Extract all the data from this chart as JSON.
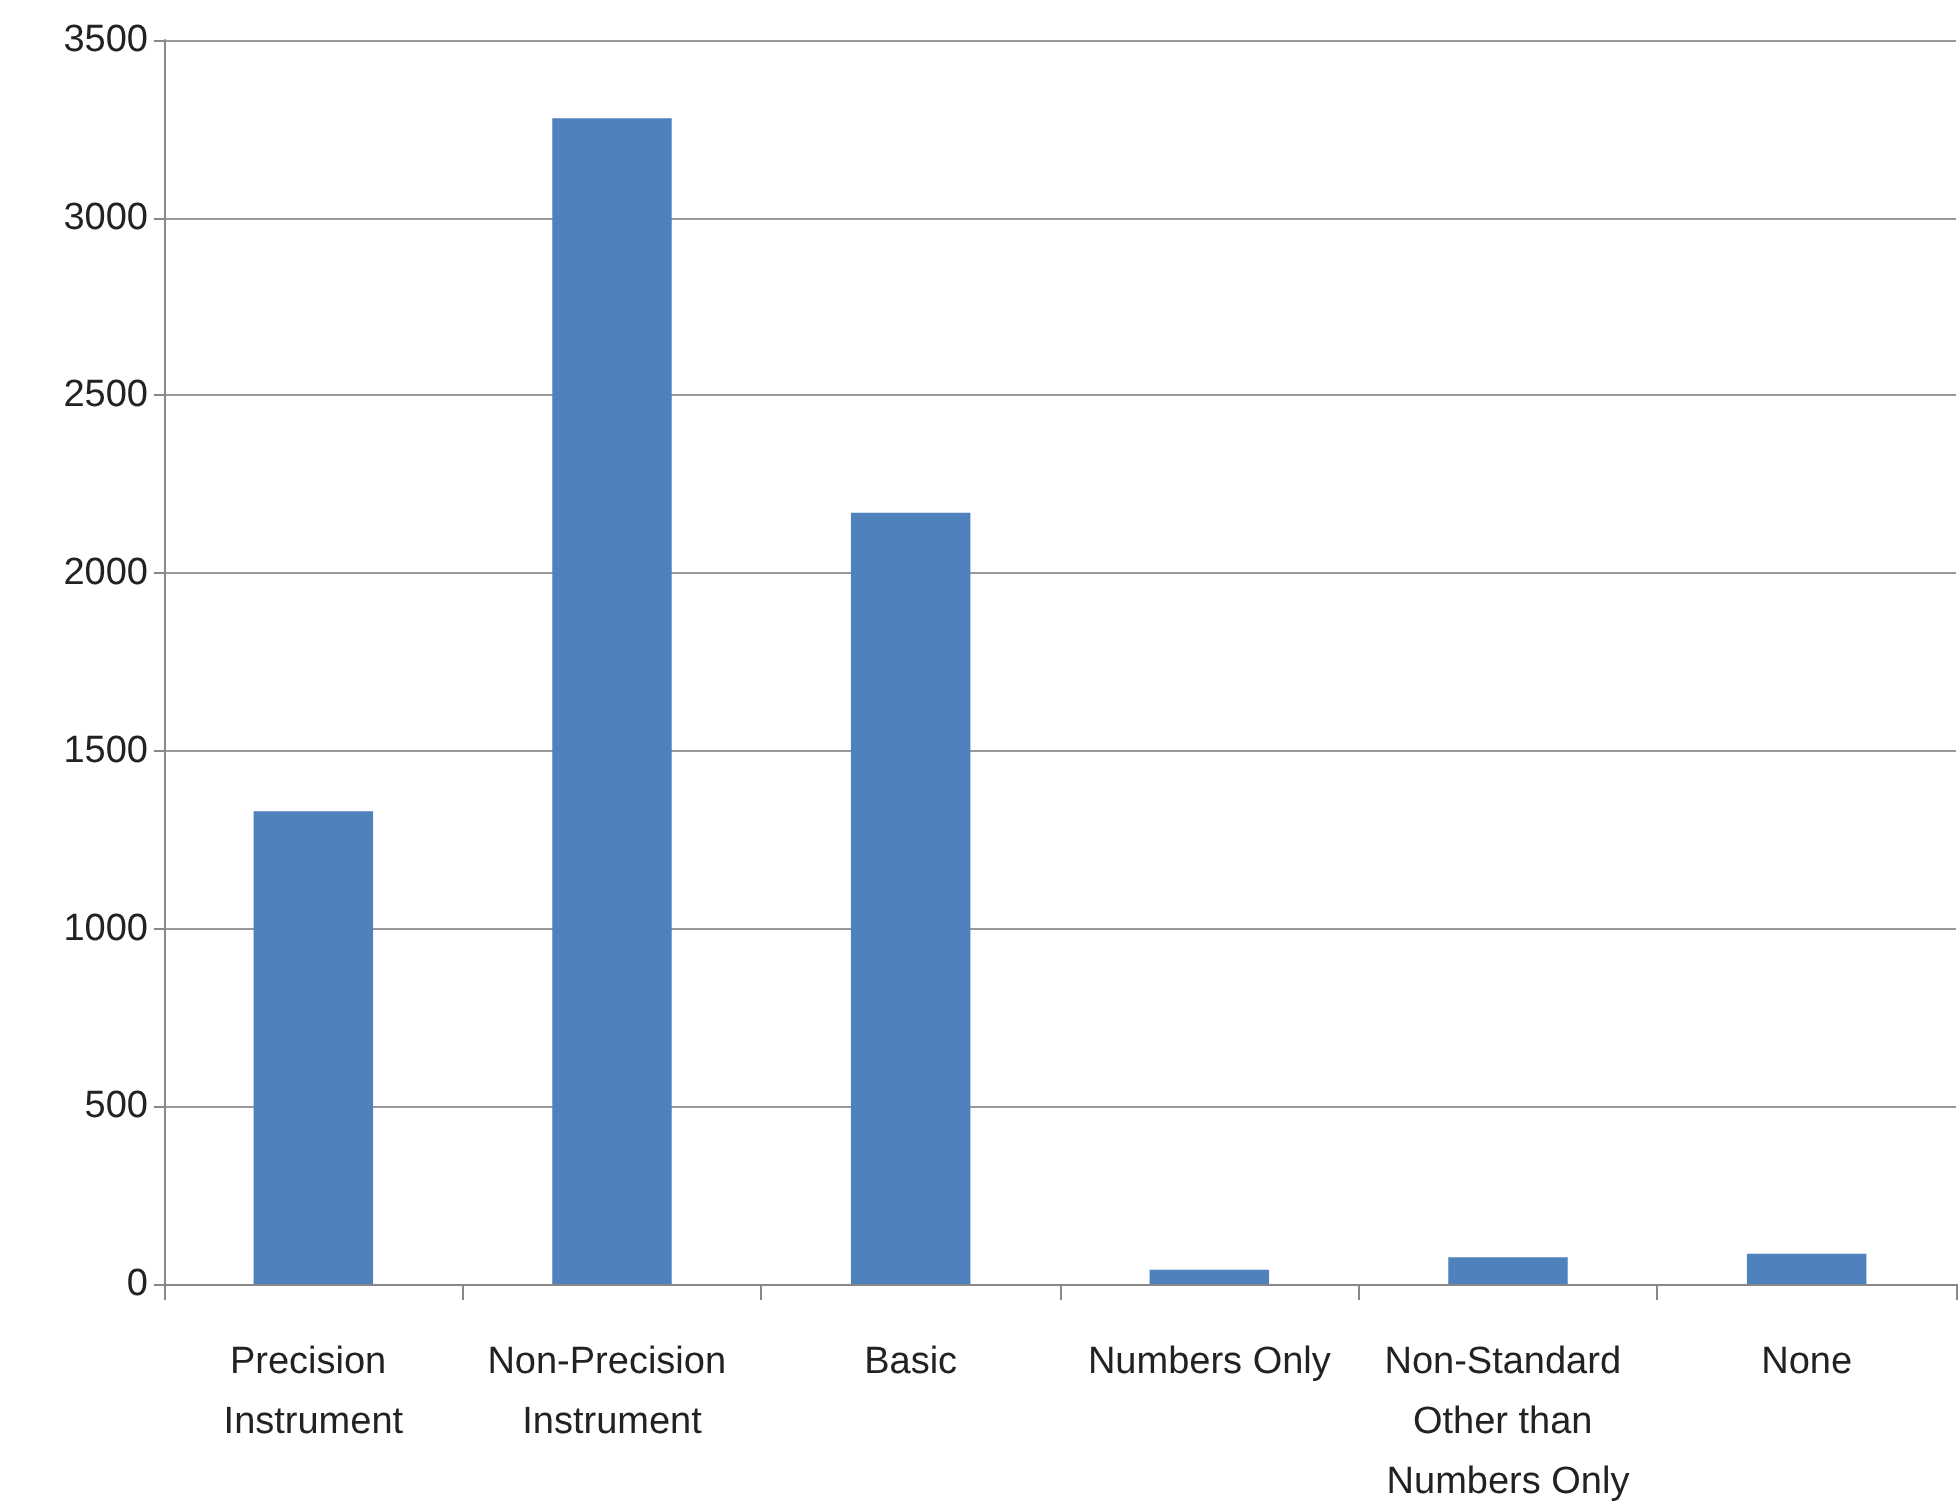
{
  "chart_data": {
    "type": "bar",
    "categories": [
      "Precision Instrument",
      "Non-Precision Instrument",
      "Basic",
      "Numbers Only",
      "Non-Standard Other than Numbers Only",
      "None"
    ],
    "values": [
      1330,
      3280,
      2170,
      40,
      75,
      85
    ],
    "color": "#4f81bd",
    "ylim": [
      0,
      3500
    ],
    "yticks": [
      0,
      500,
      1000,
      1500,
      2000,
      2500,
      3000,
      3500
    ],
    "grid": "y"
  }
}
